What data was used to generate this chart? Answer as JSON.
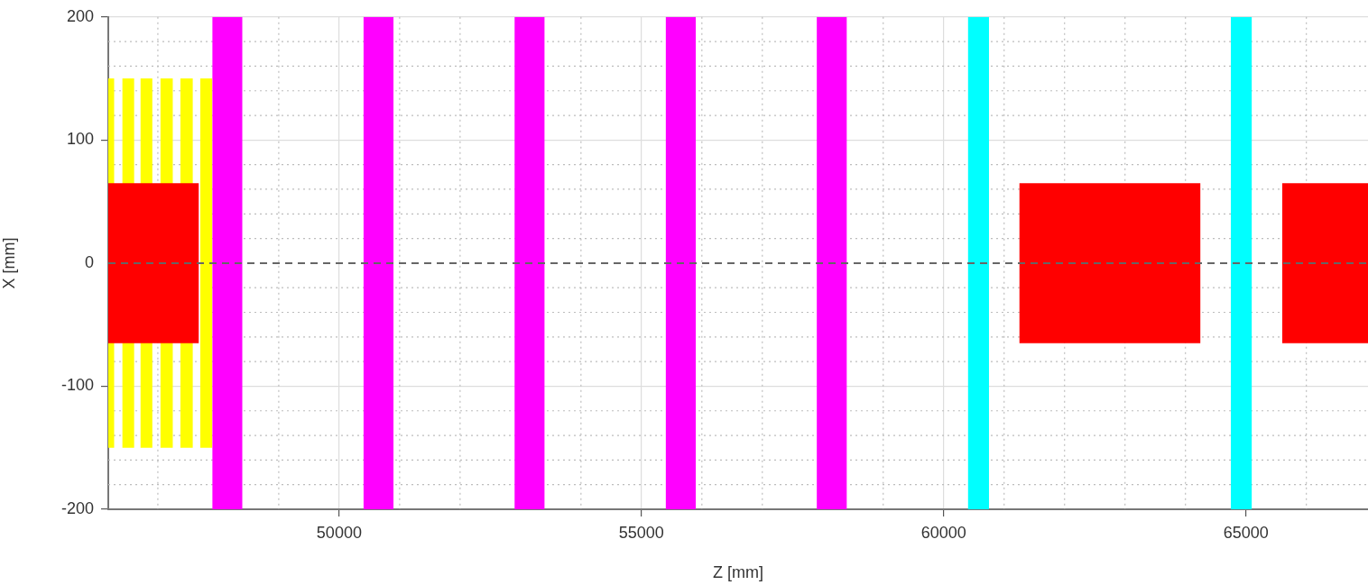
{
  "chart_data": {
    "type": "area",
    "xlabel": "Z [mm]",
    "ylabel": "X [mm]",
    "xlim": [
      46180,
      67020
    ],
    "ylim": [
      -200,
      200
    ],
    "xticks": [
      {
        "value": 47000,
        "label": null
      },
      {
        "value": 49000,
        "label": null
      },
      50000,
      {
        "value": 51000,
        "label": null
      },
      {
        "value": 52000,
        "label": null
      },
      {
        "value": 54000,
        "label": null
      },
      55000,
      {
        "value": 56000,
        "label": null
      },
      {
        "value": 57000,
        "label": null
      },
      {
        "value": 59000,
        "label": null
      },
      60000,
      {
        "value": 61000,
        "label": null
      },
      {
        "value": 62000,
        "label": null
      },
      {
        "value": 63000,
        "label": null
      },
      {
        "value": 64000,
        "label": null
      },
      65000,
      {
        "value": 66000,
        "label": null
      }
    ],
    "yticks": [
      -200,
      {
        "value": -180,
        "label": null
      },
      {
        "value": -160,
        "label": null
      },
      {
        "value": -140,
        "label": null
      },
      {
        "value": -120,
        "label": null
      },
      -100,
      {
        "value": -80,
        "label": null
      },
      {
        "value": -60,
        "label": null
      },
      {
        "value": -40,
        "label": null
      },
      {
        "value": -20,
        "label": null
      },
      0,
      {
        "value": 20,
        "label": null
      },
      {
        "value": 40,
        "label": null
      },
      {
        "value": 60,
        "label": null
      },
      {
        "value": 80,
        "label": null
      },
      100,
      {
        "value": 120,
        "label": null
      },
      {
        "value": 140,
        "label": null
      },
      {
        "value": 160,
        "label": null
      },
      {
        "value": 180,
        "label": null
      },
      200
    ],
    "grid": true,
    "ref_lines": [
      {
        "axis": "y",
        "value": 0,
        "color": "#666666",
        "line_style": "dashed"
      }
    ],
    "series": [
      {
        "color": "#ffff00",
        "x": [
          46180,
          46280
        ],
        "values": [
          150,
          150
        ]
      },
      {
        "color": "#ffff00",
        "x": [
          46180,
          46280
        ],
        "values": [
          -150,
          -150
        ]
      },
      {
        "color": "#ffff00",
        "x": [
          46410,
          46610
        ],
        "values": [
          150,
          150
        ]
      },
      {
        "color": "#ffff00",
        "x": [
          46410,
          46610
        ],
        "values": [
          -150,
          -150
        ]
      },
      {
        "color": "#ffff00",
        "x": [
          46710,
          46910
        ],
        "values": [
          150,
          150
        ]
      },
      {
        "color": "#ffff00",
        "x": [
          46710,
          46910
        ],
        "values": [
          -150,
          -150
        ]
      },
      {
        "color": "#ffff00",
        "x": [
          47040,
          47250
        ],
        "values": [
          150,
          150
        ]
      },
      {
        "color": "#ffff00",
        "x": [
          47040,
          47250
        ],
        "values": [
          -150,
          -150
        ]
      },
      {
        "color": "#ffff00",
        "x": [
          47370,
          47580
        ],
        "values": [
          150,
          150
        ]
      },
      {
        "color": "#ffff00",
        "x": [
          47370,
          47580
        ],
        "values": [
          -150,
          -150
        ]
      },
      {
        "color": "#ffff00",
        "x": [
          47700,
          47900
        ],
        "values": [
          150,
          150
        ]
      },
      {
        "color": "#ffff00",
        "x": [
          47700,
          47900
        ],
        "values": [
          -150,
          -150
        ]
      },
      {
        "color": "#ff0000",
        "x": [
          46180,
          47680
        ],
        "values": [
          65,
          65
        ]
      },
      {
        "color": "#ff0000",
        "x": [
          46180,
          47680
        ],
        "values": [
          -65,
          -65
        ]
      },
      {
        "color": "#ff00ff",
        "x": [
          47900,
          48400
        ],
        "values": [
          200,
          200
        ]
      },
      {
        "color": "#ff00ff",
        "x": [
          47900,
          48400
        ],
        "values": [
          -200,
          -200
        ]
      },
      {
        "color": "#ff00ff",
        "x": [
          50400,
          50900
        ],
        "values": [
          200,
          200
        ]
      },
      {
        "color": "#ff00ff",
        "x": [
          50400,
          50900
        ],
        "values": [
          -200,
          -200
        ]
      },
      {
        "color": "#ff00ff",
        "x": [
          52900,
          53400
        ],
        "values": [
          200,
          200
        ]
      },
      {
        "color": "#ff00ff",
        "x": [
          52900,
          53400
        ],
        "values": [
          -200,
          -200
        ]
      },
      {
        "color": "#ff00ff",
        "x": [
          55400,
          55900
        ],
        "values": [
          200,
          200
        ]
      },
      {
        "color": "#ff00ff",
        "x": [
          55400,
          55900
        ],
        "values": [
          -200,
          -200
        ]
      },
      {
        "color": "#ff00ff",
        "x": [
          57900,
          58400
        ],
        "values": [
          200,
          200
        ]
      },
      {
        "color": "#ff00ff",
        "x": [
          57900,
          58400
        ],
        "values": [
          -200,
          -200
        ]
      },
      {
        "color": "#00ffff",
        "x": [
          60400,
          60750
        ],
        "values": [
          200,
          200
        ]
      },
      {
        "color": "#00ffff",
        "x": [
          60400,
          60750
        ],
        "values": [
          -200,
          -200
        ]
      },
      {
        "color": "#00ffff",
        "x": [
          64750,
          65100
        ],
        "values": [
          200,
          200
        ]
      },
      {
        "color": "#00ffff",
        "x": [
          64750,
          65100
        ],
        "values": [
          -200,
          -200
        ]
      },
      {
        "color": "#ff0000",
        "x": [
          61250,
          64250
        ],
        "values": [
          65,
          65
        ]
      },
      {
        "color": "#ff0000",
        "x": [
          61250,
          64250
        ],
        "values": [
          -65,
          -65
        ]
      },
      {
        "color": "#ff0000",
        "x": [
          65600,
          67020
        ],
        "values": [
          65,
          65
        ]
      },
      {
        "color": "#ff0000",
        "x": [
          65600,
          67020
        ],
        "values": [
          -65,
          -65
        ]
      }
    ]
  }
}
